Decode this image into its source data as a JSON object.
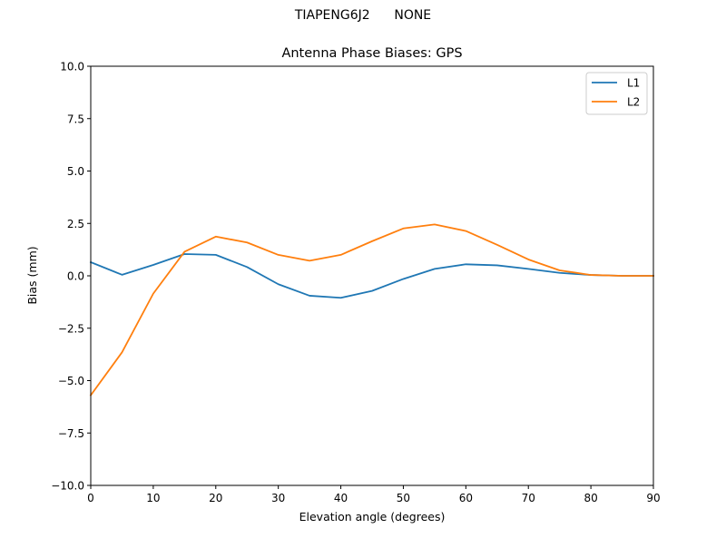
{
  "figure": {
    "suptitle": "TIAPENG6J2      NONE"
  },
  "chart_data": {
    "type": "line",
    "title": "Antenna Phase Biases: GPS",
    "xlabel": "Elevation angle (degrees)",
    "ylabel": "Bias (mm)",
    "xlim": [
      0,
      90
    ],
    "ylim": [
      -10,
      10
    ],
    "xticks": [
      0,
      10,
      20,
      30,
      40,
      50,
      60,
      70,
      80,
      90
    ],
    "yticks": [
      -10.0,
      -7.5,
      -5.0,
      -2.5,
      0.0,
      2.5,
      5.0,
      7.5,
      10.0
    ],
    "ytick_labels": [
      "−10.0",
      "−7.5",
      "−5.0",
      "−2.5",
      "0.0",
      "2.5",
      "5.0",
      "7.5",
      "10.0"
    ],
    "grid": false,
    "legend_position": "top-right",
    "x": [
      0,
      5,
      10,
      15,
      20,
      25,
      30,
      35,
      40,
      45,
      50,
      55,
      60,
      65,
      70,
      75,
      80,
      85,
      90
    ],
    "series": [
      {
        "name": "L1",
        "color": "#1f77b4",
        "values": [
          0.65,
          0.05,
          0.52,
          1.04,
          1.0,
          0.42,
          -0.4,
          -0.95,
          -1.05,
          -0.72,
          -0.15,
          0.33,
          0.55,
          0.5,
          0.33,
          0.14,
          0.04,
          0.0,
          0.0
        ]
      },
      {
        "name": "L2",
        "color": "#ff7f0e",
        "values": [
          -5.7,
          -3.65,
          -0.85,
          1.15,
          1.87,
          1.59,
          1.0,
          0.72,
          1.0,
          1.65,
          2.26,
          2.45,
          2.14,
          1.48,
          0.78,
          0.26,
          0.04,
          0.0,
          0.0
        ]
      }
    ]
  }
}
